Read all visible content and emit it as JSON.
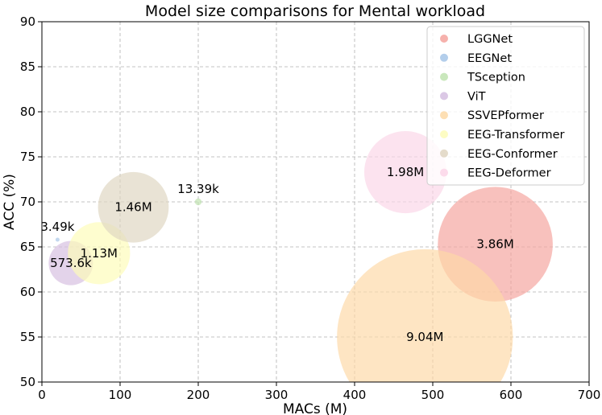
{
  "chart_data": {
    "type": "scatter",
    "title": "Model size comparisons for Mental workload",
    "xlabel": "MACs (M)",
    "ylabel": "ACC (%)",
    "xlim": [
      0,
      700
    ],
    "ylim": [
      50,
      90
    ],
    "x_ticks": [
      "0",
      "100",
      "200",
      "300",
      "400",
      "500",
      "600",
      "700"
    ],
    "y_ticks": [
      "50",
      "55",
      "60",
      "65",
      "70",
      "75",
      "80",
      "85",
      "90"
    ],
    "grid": true,
    "legend_position": "top-right",
    "series": [
      {
        "name": "LGGNet",
        "x": 580,
        "y": 65.3,
        "size_label": "3.86M",
        "params_m": 3.86,
        "color": "#f4a39d"
      },
      {
        "name": "EEGNet",
        "x": 20,
        "y": 65.8,
        "size_label": "3.49k",
        "params_m": 0.00349,
        "color": "#a6c5e8"
      },
      {
        "name": "TSception",
        "x": 200,
        "y": 70.0,
        "size_label": "13.39k",
        "params_m": 0.01339,
        "color": "#bfe3b0"
      },
      {
        "name": "ViT",
        "x": 37,
        "y": 63.2,
        "size_label": "573.6k",
        "params_m": 0.5736,
        "color": "#d5bee0"
      },
      {
        "name": "SSVEPformer",
        "x": 490,
        "y": 55.0,
        "size_label": "9.04M",
        "params_m": 9.04,
        "color": "#fdd9a7"
      },
      {
        "name": "EEG-Transformer",
        "x": 73,
        "y": 64.3,
        "size_label": "1.13M",
        "params_m": 1.13,
        "color": "#fdfcb8"
      },
      {
        "name": "EEG-Conformer",
        "x": 117,
        "y": 69.4,
        "size_label": "1.46M",
        "params_m": 1.46,
        "color": "#dfd5c1"
      },
      {
        "name": "EEG-Deformer",
        "x": 465,
        "y": 73.3,
        "size_label": "1.98M",
        "params_m": 1.98,
        "color": "#fbd5e7"
      }
    ]
  }
}
